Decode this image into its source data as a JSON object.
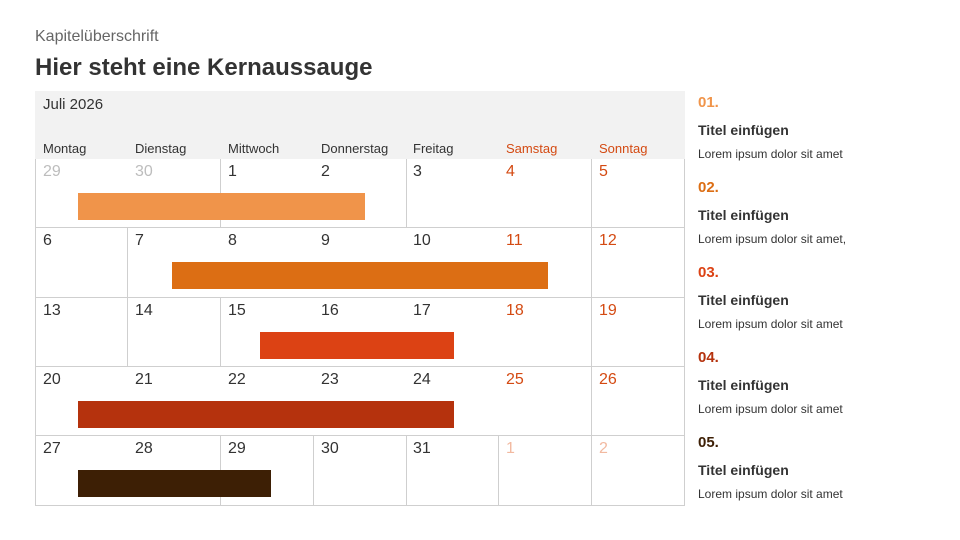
{
  "slide": {
    "kicker": "Kapitelüberschrift",
    "headline": "Hier steht eine Kernaussauge"
  },
  "calendar": {
    "month": "Juli 2026",
    "weekdays": [
      "Montag",
      "Dienstag",
      "Mittwoch",
      "Donnerstag",
      "Freitag",
      "Samstag",
      "Sonntag"
    ],
    "weeks": [
      [
        "29",
        "30",
        "1",
        "2",
        "3",
        "4",
        "5"
      ],
      [
        "6",
        "7",
        "8",
        "9",
        "10",
        "11",
        "12"
      ],
      [
        "13",
        "14",
        "15",
        "16",
        "17",
        "18",
        "19"
      ],
      [
        "20",
        "21",
        "22",
        "23",
        "24",
        "25",
        "26"
      ],
      [
        "27",
        "28",
        "29",
        "30",
        "31",
        "1",
        "2"
      ]
    ],
    "colors": {
      "weekend": "#d44a12",
      "bar1": "#f0944a",
      "bar2": "#dc6e14",
      "bar3": "#dc4214",
      "bar4": "#b5320d",
      "bar5": "#3d1f05"
    }
  },
  "items": [
    {
      "num": "01.",
      "title": "Titel einfügen",
      "text": "Lorem ipsum dolor sit amet",
      "color": "#f0944a"
    },
    {
      "num": "02.",
      "title": "Titel einfügen",
      "text": "Lorem ipsum dolor sit amet,",
      "color": "#dc6e14"
    },
    {
      "num": "03.",
      "title": "Titel einfügen",
      "text": "Lorem ipsum dolor sit amet",
      "color": "#dc4214"
    },
    {
      "num": "04.",
      "title": "Titel einfügen",
      "text": "Lorem ipsum dolor sit amet",
      "color": "#b5320d"
    },
    {
      "num": "05.",
      "title": "Titel einfügen",
      "text": "Lorem ipsum dolor sit amet",
      "color": "#3d1f05"
    }
  ]
}
